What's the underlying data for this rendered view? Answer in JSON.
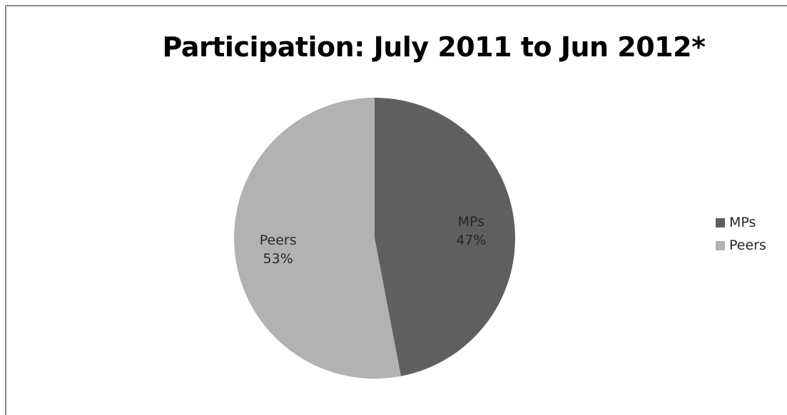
{
  "chart_data": {
    "type": "pie",
    "title": "Participation: July 2011 to Jun 2012*",
    "categories": [
      "MPs",
      "Peers"
    ],
    "values": [
      47,
      53
    ],
    "labels": [
      "47%",
      "53%"
    ],
    "colors": [
      "#5f5f5f",
      "#b2b2b2"
    ],
    "legend": "right",
    "start_angle": "12 o'clock, clockwise"
  }
}
